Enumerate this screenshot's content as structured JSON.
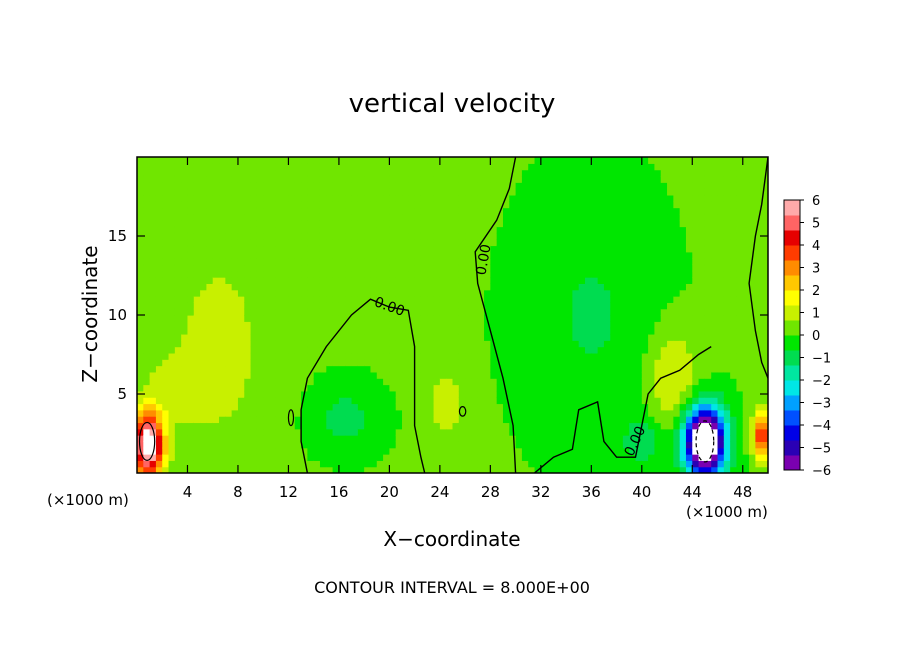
{
  "chart_data": {
    "type": "heatmap",
    "title": "vertical velocity",
    "xlabel": "X−coordinate",
    "ylabel": "Z−coordinate",
    "x_unit_left": "(×1000 m)",
    "x_unit_right": "(×1000 m)",
    "footer": "CONTOUR INTERVAL = 8.000E+00",
    "xlim": [
      0,
      50
    ],
    "ylim": [
      0,
      20
    ],
    "x_ticks": [
      "4",
      "8",
      "12",
      "16",
      "20",
      "24",
      "28",
      "32",
      "36",
      "40",
      "44",
      "48"
    ],
    "x_tick_values": [
      4,
      8,
      12,
      16,
      20,
      24,
      28,
      32,
      36,
      40,
      44,
      48
    ],
    "y_ticks": [
      "5",
      "10",
      "15"
    ],
    "y_tick_values": [
      5,
      10,
      15
    ],
    "colorbar": {
      "range": [
        -6,
        6
      ],
      "labels": [
        "6",
        "5",
        "4",
        "3",
        "2",
        "1",
        "0",
        "−1",
        "−2",
        "−3",
        "−4",
        "−5",
        "−6"
      ],
      "label_values": [
        6,
        5,
        4,
        3,
        2,
        1,
        0,
        -1,
        -2,
        -3,
        -4,
        -5,
        -6
      ],
      "colors": [
        "#7a00b0",
        "#2a00b4",
        "#0000e6",
        "#0050ff",
        "#00a0ff",
        "#00e6e6",
        "#00e6a0",
        "#00dc50",
        "#00e600",
        "#70e600",
        "#c8f000",
        "#ffff00",
        "#ffc800",
        "#ff8c00",
        "#ff3c00",
        "#e60000",
        "#ff6464",
        "#ffaaaa"
      ]
    },
    "features": [
      {
        "x": 0.9,
        "z": 1.8,
        "value": 7,
        "radius_x": 1.2,
        "radius_z": 2.0
      },
      {
        "x": 45.0,
        "z": 2.0,
        "value": -9,
        "radius_x": 1.6,
        "radius_z": 2.2
      },
      {
        "x": 49.5,
        "z": 2.5,
        "value": 4,
        "radius_x": 0.7,
        "radius_z": 1.5
      },
      {
        "x": 24.5,
        "z": 4.5,
        "value": 1.2,
        "radius_x": 1.5,
        "radius_z": 2.0
      },
      {
        "x": 6.5,
        "z": 8.0,
        "value": 0.9,
        "radius_x": 4.0,
        "radius_z": 7.0
      },
      {
        "x": 36.0,
        "z": 10.0,
        "value": -0.8,
        "radius_x": 5.0,
        "radius_z": 7.0
      },
      {
        "x": 16.5,
        "z": 3.5,
        "value": -1.0,
        "radius_x": 2.5,
        "radius_z": 2.0
      },
      {
        "x": 40.0,
        "z": 2.0,
        "value": -1.2,
        "radius_x": 1.5,
        "radius_z": 1.5
      },
      {
        "x": 42.5,
        "z": 6.0,
        "value": 1.4,
        "radius_x": 2.0,
        "radius_z": 3.0
      },
      {
        "x": 3.0,
        "z": 5.5,
        "value": 0.8,
        "radius_x": 2.5,
        "radius_z": 2.0
      }
    ],
    "contour_labels": [
      {
        "text": "0.00",
        "x": 20.0,
        "z": 10.5,
        "angle": 20
      },
      {
        "text": "0.00",
        "x": 27.5,
        "z": 13.5,
        "angle": -80
      },
      {
        "text": "0.00",
        "x": 39.5,
        "z": 2.0,
        "angle": -65
      }
    ],
    "zero_contours": [
      [
        [
          13.5,
          0
        ],
        [
          13,
          2
        ],
        [
          13,
          4
        ],
        [
          13.5,
          6
        ],
        [
          15,
          8
        ],
        [
          17,
          10
        ],
        [
          18.5,
          11
        ],
        [
          20,
          10.5
        ],
        [
          21.5,
          10.3
        ],
        [
          22,
          8
        ],
        [
          22,
          6
        ],
        [
          22,
          3
        ],
        [
          22.5,
          1
        ],
        [
          22.8,
          0
        ]
      ],
      [
        [
          30,
          0
        ],
        [
          29.8,
          3
        ],
        [
          29,
          6
        ],
        [
          28,
          9
        ],
        [
          27,
          12
        ],
        [
          26.8,
          14
        ],
        [
          28.5,
          16
        ],
        [
          29.5,
          18
        ],
        [
          30,
          20
        ]
      ],
      [
        [
          31.5,
          0
        ],
        [
          33,
          1
        ],
        [
          34.5,
          1.5
        ],
        [
          35,
          4
        ],
        [
          36.5,
          4.5
        ],
        [
          37,
          2
        ],
        [
          38,
          1
        ],
        [
          39.5,
          1
        ],
        [
          40,
          3
        ],
        [
          40.5,
          5
        ],
        [
          41.5,
          6
        ],
        [
          43,
          6.5
        ],
        [
          44.5,
          7.5
        ],
        [
          45.5,
          8
        ]
      ],
      [
        [
          50,
          20
        ],
        [
          49.5,
          17
        ],
        [
          49,
          15
        ],
        [
          48.5,
          12
        ],
        [
          49,
          9
        ],
        [
          49.5,
          7
        ],
        [
          50,
          6
        ]
      ]
    ],
    "small_contours": [
      {
        "x": 0.8,
        "z": 2.0,
        "rx": 0.6,
        "rz": 1.2,
        "dash": false
      },
      {
        "x": 45.0,
        "z": 2.0,
        "rx": 0.7,
        "rz": 1.3,
        "dash": true
      },
      {
        "x": 12.2,
        "z": 3.5,
        "rx": 0.2,
        "rz": 0.5,
        "dash": false
      },
      {
        "x": 25.8,
        "z": 3.9,
        "rx": 0.25,
        "rz": 0.3,
        "dash": false
      }
    ]
  }
}
